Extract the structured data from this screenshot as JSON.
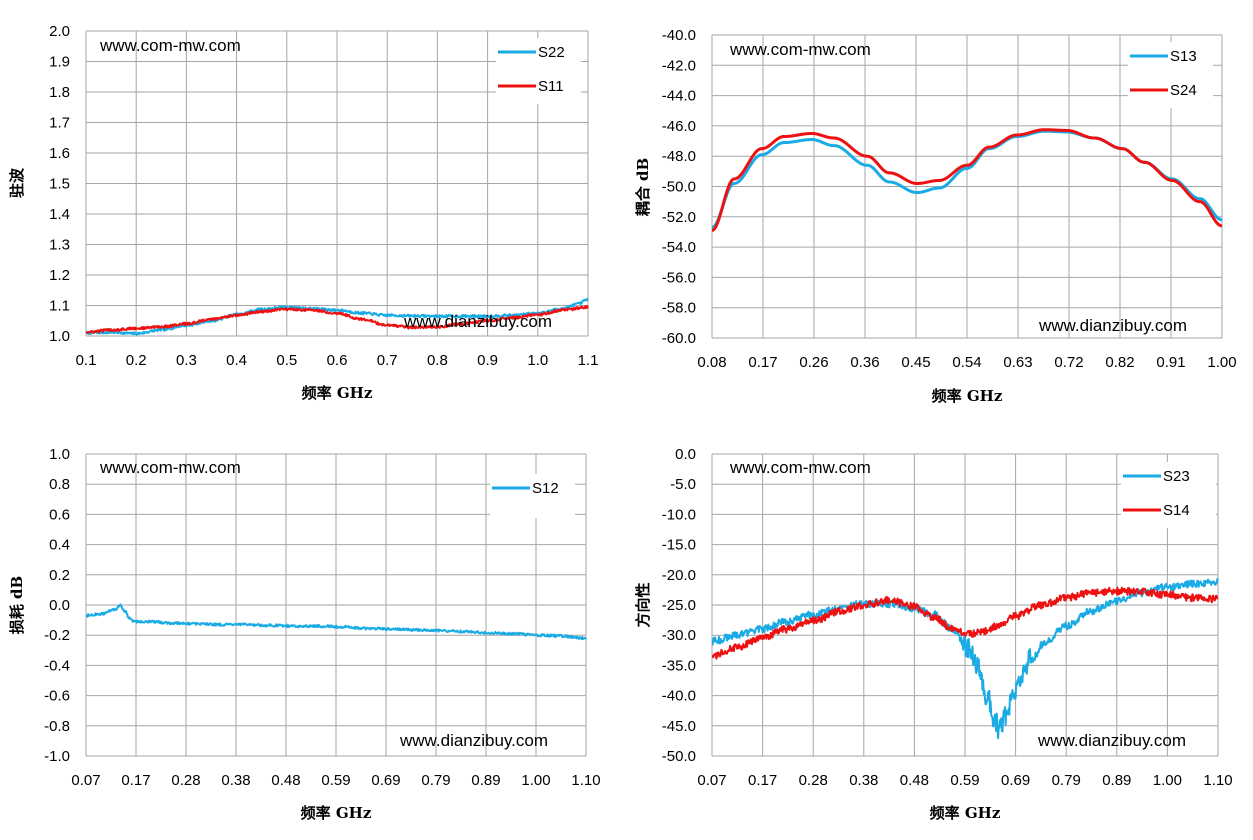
{
  "colors": {
    "blue": "#1aabe4",
    "red": "#ee1111",
    "grid": "#a6a6a6"
  },
  "chart_data": [
    {
      "type": "line",
      "ylabel": "驻波",
      "xlabel": "频率 GHz",
      "xlim": [
        0.1,
        1.1
      ],
      "ylim": [
        1.0,
        2.0
      ],
      "xticks": [
        "0.1",
        "0.2",
        "0.3",
        "0.4",
        "0.5",
        "0.6",
        "0.7",
        "0.8",
        "0.9",
        "1.0",
        "1.1"
      ],
      "yticks": [
        "1.0",
        "1.1",
        "1.2",
        "1.3",
        "1.4",
        "1.5",
        "1.6",
        "1.7",
        "1.8",
        "1.9",
        "2.0"
      ],
      "watermark_top": "www.com-mw.com",
      "watermark_bottom": "www.dianzibuy.com",
      "legend": "top-right",
      "grid": true,
      "series": [
        {
          "name": "S22",
          "color": "#1aabe4",
          "x": [
            0.1,
            0.15,
            0.2,
            0.25,
            0.3,
            0.35,
            0.4,
            0.45,
            0.5,
            0.55,
            0.6,
            0.65,
            0.7,
            0.75,
            0.8,
            0.85,
            0.9,
            0.95,
            1.0,
            1.05,
            1.08,
            1.1
          ],
          "y": [
            1.01,
            1.012,
            1.008,
            1.02,
            1.035,
            1.05,
            1.07,
            1.088,
            1.095,
            1.09,
            1.085,
            1.075,
            1.068,
            1.066,
            1.065,
            1.065,
            1.065,
            1.068,
            1.075,
            1.09,
            1.105,
            1.12
          ]
        },
        {
          "name": "S11",
          "color": "#ee1111",
          "x": [
            0.1,
            0.15,
            0.2,
            0.25,
            0.3,
            0.35,
            0.4,
            0.45,
            0.5,
            0.55,
            0.6,
            0.65,
            0.7,
            0.75,
            0.8,
            0.85,
            0.9,
            0.95,
            1.0,
            1.05,
            1.1
          ],
          "y": [
            1.012,
            1.02,
            1.025,
            1.03,
            1.04,
            1.055,
            1.068,
            1.08,
            1.088,
            1.085,
            1.075,
            1.055,
            1.035,
            1.028,
            1.03,
            1.04,
            1.05,
            1.06,
            1.07,
            1.085,
            1.095
          ]
        }
      ]
    },
    {
      "type": "line",
      "ylabel": "耦合 dB",
      "xlabel": "频率 GHz",
      "xlim": [
        0.08,
        1.0
      ],
      "ylim": [
        -60,
        -40
      ],
      "xticks": [
        "0.08",
        "0.17",
        "0.26",
        "0.36",
        "0.45",
        "0.54",
        "0.63",
        "0.72",
        "0.82",
        "0.91",
        "1.00"
      ],
      "yticks": [
        "-60.0",
        "-58.0",
        "-56.0",
        "-54.0",
        "-52.0",
        "-50.0",
        "-48.0",
        "-46.0",
        "-44.0",
        "-42.0",
        "-40.0"
      ],
      "watermark_top": "www.com-mw.com",
      "watermark_bottom": "www.dianzibuy.com",
      "legend": "top-right",
      "grid": true,
      "series": [
        {
          "name": "S13",
          "color": "#1aabe4",
          "x": [
            0.08,
            0.12,
            0.17,
            0.21,
            0.26,
            0.3,
            0.36,
            0.4,
            0.45,
            0.49,
            0.54,
            0.58,
            0.63,
            0.68,
            0.72,
            0.77,
            0.82,
            0.86,
            0.91,
            0.96,
            1.0
          ],
          "y": [
            -52.7,
            -49.8,
            -47.9,
            -47.1,
            -46.9,
            -47.3,
            -48.6,
            -49.7,
            -50.4,
            -50.1,
            -48.8,
            -47.5,
            -46.7,
            -46.35,
            -46.4,
            -46.8,
            -47.5,
            -48.4,
            -49.5,
            -50.8,
            -52.2
          ]
        },
        {
          "name": "S24",
          "color": "#ee1111",
          "x": [
            0.08,
            0.12,
            0.17,
            0.21,
            0.26,
            0.3,
            0.36,
            0.4,
            0.45,
            0.49,
            0.54,
            0.58,
            0.63,
            0.68,
            0.72,
            0.77,
            0.82,
            0.86,
            0.91,
            0.96,
            1.0
          ],
          "y": [
            -52.9,
            -49.5,
            -47.5,
            -46.7,
            -46.5,
            -46.8,
            -48.0,
            -49.1,
            -49.8,
            -49.6,
            -48.6,
            -47.4,
            -46.6,
            -46.25,
            -46.3,
            -46.8,
            -47.5,
            -48.4,
            -49.6,
            -51.0,
            -52.6
          ]
        }
      ]
    },
    {
      "type": "line",
      "ylabel": "损耗 dB",
      "xlabel": "频率 GHz",
      "xlim": [
        0.07,
        1.1
      ],
      "ylim": [
        -1.0,
        1.0
      ],
      "xticks": [
        "0.07",
        "0.17",
        "0.28",
        "0.38",
        "0.48",
        "0.59",
        "0.69",
        "0.79",
        "0.89",
        "1.00",
        "1.10"
      ],
      "yticks": [
        "-1.0",
        "-0.8",
        "-0.6",
        "-0.4",
        "-0.2",
        "0.0",
        "0.2",
        "0.4",
        "0.6",
        "0.8",
        "1.0"
      ],
      "watermark_top": "www.com-mw.com",
      "watermark_bottom": "www.dianzibuy.com",
      "legend": "top-right",
      "grid": true,
      "series": [
        {
          "name": "S12",
          "color": "#1aabe4",
          "x": [
            0.07,
            0.1,
            0.13,
            0.14,
            0.15,
            0.16,
            0.17,
            0.2,
            0.25,
            0.3,
            0.35,
            0.4,
            0.45,
            0.5,
            0.55,
            0.6,
            0.65,
            0.7,
            0.75,
            0.8,
            0.85,
            0.9,
            0.95,
            1.0,
            1.05,
            1.1
          ],
          "y": [
            -0.07,
            -0.06,
            -0.03,
            0.0,
            -0.04,
            -0.09,
            -0.11,
            -0.11,
            -0.12,
            -0.125,
            -0.13,
            -0.13,
            -0.135,
            -0.14,
            -0.14,
            -0.145,
            -0.155,
            -0.16,
            -0.165,
            -0.17,
            -0.175,
            -0.185,
            -0.19,
            -0.2,
            -0.205,
            -0.22
          ]
        }
      ]
    },
    {
      "type": "line",
      "ylabel": "方向性",
      "xlabel": "频率 GHz",
      "xlim": [
        0.07,
        1.1
      ],
      "ylim": [
        -50,
        0
      ],
      "xticks": [
        "0.07",
        "0.17",
        "0.28",
        "0.38",
        "0.48",
        "0.59",
        "0.69",
        "0.79",
        "0.89",
        "1.00",
        "1.10"
      ],
      "yticks": [
        "-50.0",
        "-45.0",
        "-40.0",
        "-35.0",
        "-30.0",
        "-25.0",
        "-20.0",
        "-15.0",
        "-10.0",
        "-5.0",
        "0.0"
      ],
      "watermark_top": "www.com-mw.com",
      "watermark_bottom": "www.dianzibuy.com",
      "legend": "top-right",
      "grid": true,
      "series": [
        {
          "name": "S23",
          "color": "#1aabe4",
          "x": [
            0.07,
            0.12,
            0.17,
            0.22,
            0.28,
            0.33,
            0.38,
            0.43,
            0.48,
            0.52,
            0.56,
            0.59,
            0.61,
            0.63,
            0.645,
            0.655,
            0.67,
            0.69,
            0.72,
            0.75,
            0.79,
            0.84,
            0.89,
            0.94,
            1.0,
            1.05,
            1.1
          ],
          "y": [
            -31.0,
            -30.0,
            -29.0,
            -27.8,
            -26.5,
            -25.5,
            -24.8,
            -24.8,
            -25.5,
            -26.5,
            -29.0,
            -32.0,
            -35.0,
            -40.0,
            -44.0,
            -45.5,
            -43.0,
            -38.5,
            -34.0,
            -31.0,
            -28.5,
            -26.0,
            -24.5,
            -23.0,
            -22.0,
            -21.5,
            -21.2
          ]
        },
        {
          "name": "S14",
          "color": "#ee1111",
          "x": [
            0.07,
            0.12,
            0.17,
            0.22,
            0.28,
            0.33,
            0.38,
            0.43,
            0.48,
            0.52,
            0.56,
            0.59,
            0.62,
            0.65,
            0.69,
            0.74,
            0.79,
            0.84,
            0.89,
            0.94,
            1.0,
            1.05,
            1.1
          ],
          "y": [
            -33.5,
            -32.0,
            -30.5,
            -29.0,
            -27.5,
            -26.0,
            -25.0,
            -24.2,
            -25.2,
            -27.0,
            -28.8,
            -29.8,
            -29.5,
            -28.5,
            -26.8,
            -25.0,
            -23.8,
            -23.0,
            -22.7,
            -22.8,
            -23.3,
            -23.8,
            -24.0
          ]
        }
      ]
    }
  ]
}
